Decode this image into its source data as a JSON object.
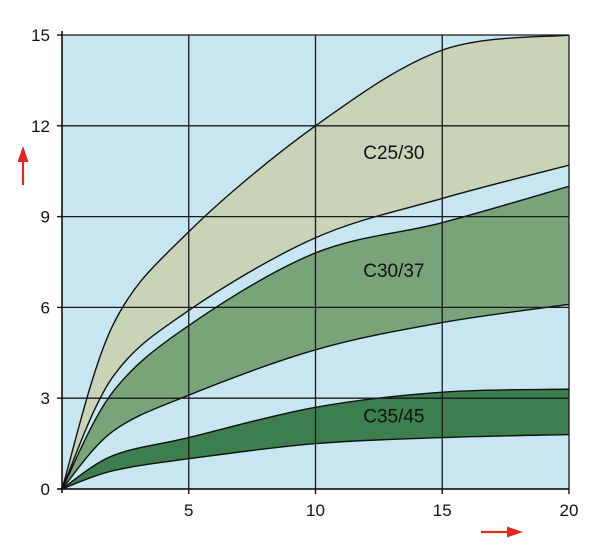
{
  "chart_data": {
    "type": "area",
    "title": "",
    "xlabel": "",
    "ylabel": "",
    "xlim": [
      0,
      20
    ],
    "ylim": [
      0,
      15
    ],
    "x_ticks": [
      "5",
      "10",
      "15",
      "20"
    ],
    "y_ticks": [
      "0",
      "3",
      "6",
      "9",
      "12",
      "15"
    ],
    "grid": true,
    "x": [
      0,
      2,
      5,
      10,
      15,
      20
    ],
    "bands": [
      {
        "label": "C25/30",
        "upper": [
          0,
          5.4,
          8.5,
          12.0,
          14.5,
          15.0
        ],
        "lower": [
          0,
          3.7,
          5.9,
          8.3,
          9.6,
          10.7
        ],
        "color": "#c9d3b8"
      },
      {
        "label": "C30/37",
        "upper": [
          0,
          3.2,
          5.4,
          7.8,
          8.8,
          10.0
        ],
        "lower": [
          0,
          1.9,
          3.1,
          4.6,
          5.5,
          6.1
        ],
        "color": "#79a47a"
      },
      {
        "label": "C35/45",
        "upper": [
          0,
          1.1,
          1.7,
          2.7,
          3.2,
          3.3
        ],
        "lower": [
          0,
          0.6,
          1.0,
          1.5,
          1.7,
          1.8
        ],
        "color": "#3d7e4e"
      }
    ],
    "background_color": "#c8e6f2",
    "grid_color": "#1a1a1a",
    "arrow_color": "#e0281e"
  }
}
